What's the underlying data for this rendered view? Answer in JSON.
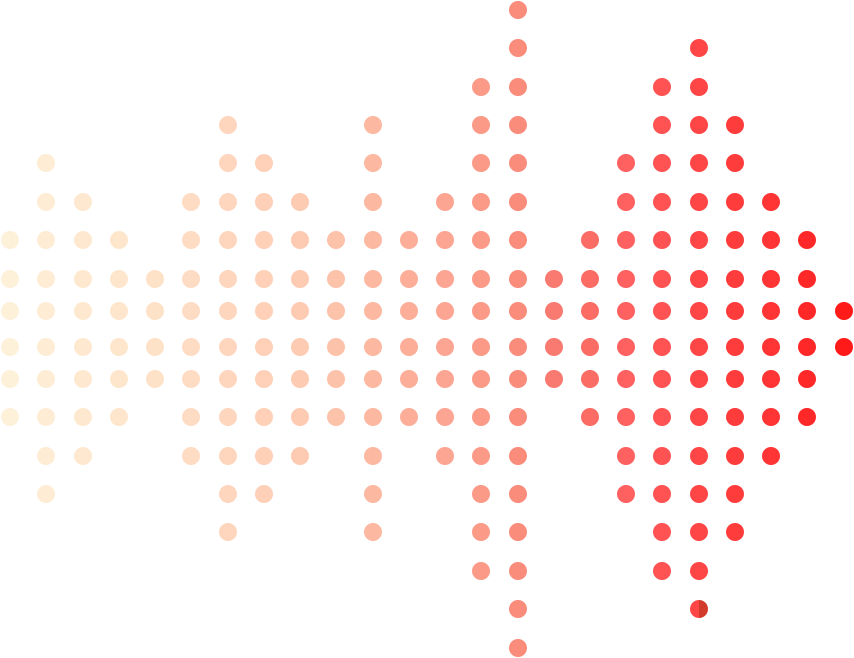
{
  "pattern": {
    "description_type": "dot-waveform",
    "columns": [
      {
        "rows": [
          6,
          7,
          8,
          9,
          10,
          11
        ],
        "color": "#FEF1DA"
      },
      {
        "rows": [
          4,
          5,
          6,
          7,
          8,
          9,
          10,
          11,
          12,
          13
        ],
        "color": "#FEEDD4"
      },
      {
        "rows": [
          5,
          6,
          7,
          8,
          9,
          10,
          11,
          12
        ],
        "color": "#FEE9D0"
      },
      {
        "rows": [
          6,
          7,
          8,
          9,
          10,
          11
        ],
        "color": "#FEE6CC"
      },
      {
        "rows": [
          7,
          8,
          9,
          10
        ],
        "color": "#FEE2C8"
      },
      {
        "rows": [
          5,
          6,
          7,
          8,
          9,
          10,
          11,
          12
        ],
        "color": "#FEDCC4"
      },
      {
        "rows": [
          3,
          4,
          5,
          6,
          7,
          8,
          9,
          10,
          11,
          12,
          13,
          14
        ],
        "color": "#FED6BE"
      },
      {
        "rows": [
          4,
          5,
          6,
          7,
          8,
          9,
          10,
          11,
          12,
          13
        ],
        "color": "#FED0B8"
      },
      {
        "rows": [
          5,
          6,
          7,
          8,
          9,
          10,
          11,
          12
        ],
        "color": "#FDCAB2"
      },
      {
        "rows": [
          6,
          7,
          8,
          9,
          10,
          11
        ],
        "color": "#FDC2AA"
      },
      {
        "rows": [
          3,
          4,
          5,
          6,
          7,
          8,
          9,
          10,
          11,
          12,
          13,
          14
        ],
        "color": "#FDB8A2"
      },
      {
        "rows": [
          6,
          7,
          8,
          9,
          10,
          11
        ],
        "color": "#FCAE98"
      },
      {
        "rows": [
          5,
          6,
          7,
          8,
          9,
          10,
          11,
          12
        ],
        "color": "#FCA592"
      },
      {
        "rows": [
          2,
          3,
          4,
          5,
          6,
          7,
          8,
          9,
          10,
          11,
          12,
          13,
          14,
          15
        ],
        "color": "#FC9A88"
      },
      {
        "rows": [
          0,
          1,
          2,
          3,
          4,
          5,
          6,
          7,
          8,
          9,
          10,
          11,
          12,
          13,
          14,
          15,
          16,
          17
        ],
        "color": "#FA8C7C"
      },
      {
        "rows": [
          7,
          8,
          9,
          10
        ],
        "color": "#F87A70"
      },
      {
        "rows": [
          6,
          7,
          8,
          9,
          10,
          11
        ],
        "color": "#FB6C64"
      },
      {
        "rows": [
          4,
          5,
          6,
          7,
          8,
          9,
          10,
          11,
          12,
          13
        ],
        "color": "#FF6060"
      },
      {
        "rows": [
          2,
          3,
          4,
          5,
          6,
          7,
          8,
          9,
          10,
          11,
          12,
          13,
          14,
          15
        ],
        "color": "#FF5252"
      },
      {
        "rows": [
          1,
          2,
          3,
          4,
          5,
          6,
          7,
          8,
          9,
          10,
          11,
          12,
          13,
          14,
          15,
          16
        ],
        "color": "#FF4646"
      },
      {
        "rows": [
          3,
          4,
          5,
          6,
          7,
          8,
          9,
          10,
          11,
          12,
          13,
          14
        ],
        "color": "#FF3C3C"
      },
      {
        "rows": [
          5,
          6,
          7,
          8,
          9,
          10,
          11,
          12
        ],
        "color": "#FF3434"
      },
      {
        "rows": [
          6,
          7,
          8,
          9,
          10,
          11
        ],
        "color": "#FF2828"
      },
      {
        "rows": [
          8,
          9
        ],
        "color": "#FF1A1A"
      }
    ],
    "split_dot": {
      "column": 19,
      "row": 16,
      "dark_half_color": "#D23A2C"
    }
  }
}
